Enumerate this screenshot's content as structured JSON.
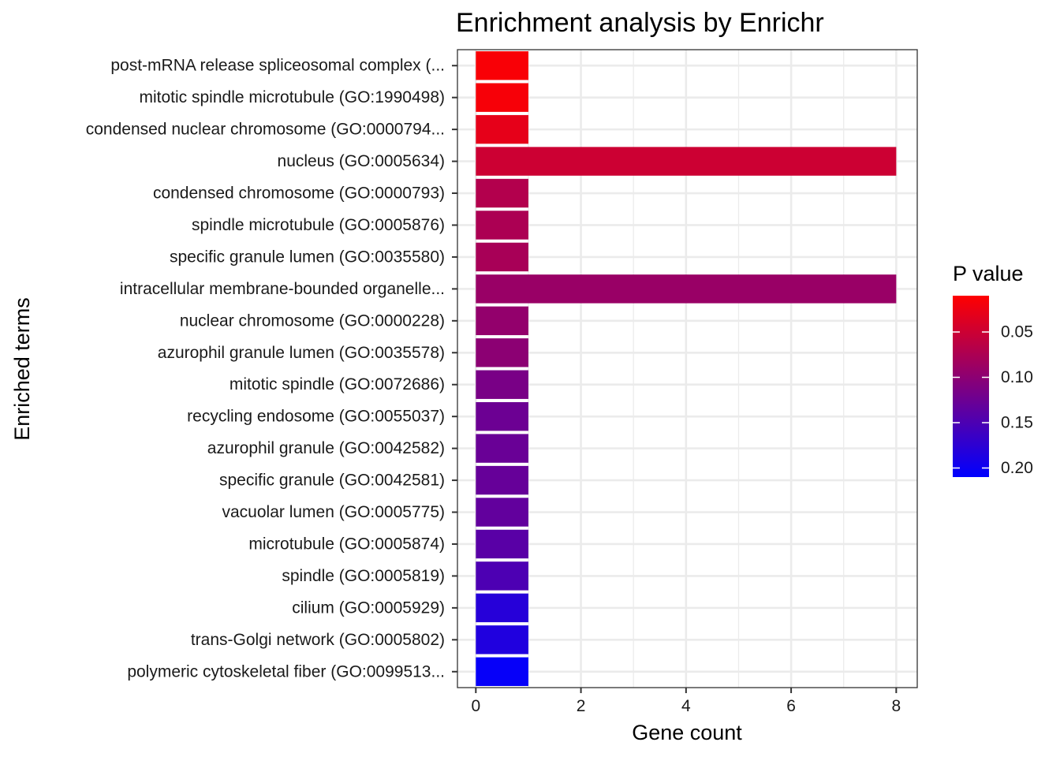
{
  "chart_data": {
    "type": "bar",
    "orientation": "horizontal",
    "title": "Enrichment analysis by Enrichr",
    "xlabel": "Gene count",
    "ylabel": "Enriched terms",
    "xlim": [
      -0.35,
      8.4
    ],
    "xticks": [
      0,
      2,
      4,
      6,
      8
    ],
    "grid": true,
    "categories": [
      "post-mRNA release spliceosomal complex (...",
      "mitotic spindle microtubule (GO:1990498)",
      "condensed nuclear chromosome (GO:0000794...",
      "nucleus (GO:0005634)",
      "condensed chromosome (GO:0000793)",
      "spindle microtubule (GO:0005876)",
      "specific granule lumen (GO:0035580)",
      "intracellular membrane-bounded organelle...",
      "nuclear chromosome (GO:0000228)",
      "azurophil granule lumen (GO:0035578)",
      "mitotic spindle (GO:0072686)",
      "recycling endosome (GO:0055037)",
      "azurophil granule (GO:0042582)",
      "specific granule (GO:0042581)",
      "vacuolar lumen (GO:0005775)",
      "microtubule (GO:0005874)",
      "spindle (GO:0005819)",
      "cilium (GO:0005929)",
      "trans-Golgi network (GO:0005802)",
      "polymeric cytoskeletal fiber (GO:0099513..."
    ],
    "values": [
      1,
      1,
      1,
      8,
      1,
      1,
      1,
      8,
      1,
      1,
      1,
      1,
      1,
      1,
      1,
      1,
      1,
      1,
      1,
      1
    ],
    "p_values": [
      0.015,
      0.016,
      0.03,
      0.05,
      0.07,
      0.075,
      0.078,
      0.09,
      0.095,
      0.1,
      0.115,
      0.125,
      0.128,
      0.13,
      0.133,
      0.14,
      0.15,
      0.18,
      0.185,
      0.205
    ],
    "legend": {
      "title": "P value",
      "placement": "right",
      "ticks": [
        "0.05",
        "0.10",
        "0.15",
        "0.20"
      ],
      "tick_values": [
        0.05,
        0.1,
        0.15,
        0.2
      ],
      "range": [
        0.01,
        0.21
      ],
      "color_low": "#ff0000",
      "color_high": "#0000ff"
    }
  }
}
